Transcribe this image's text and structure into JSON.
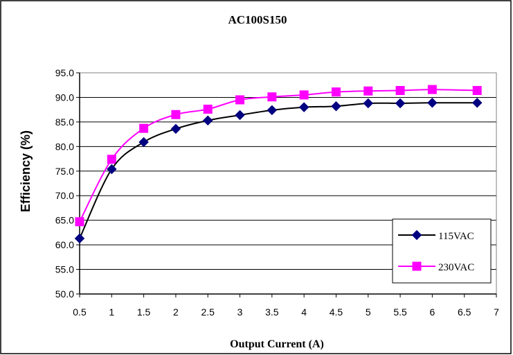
{
  "chart_data": {
    "type": "line",
    "title": "AC100S150",
    "xlabel": "Output Current (A)",
    "ylabel": "Efficiency (%)",
    "xlim": [
      0.5,
      7
    ],
    "ylim": [
      50,
      95
    ],
    "xticks": [
      "0.5",
      "1",
      "1.5",
      "2",
      "2.5",
      "3",
      "3.5",
      "4",
      "4.5",
      "5",
      "5.5",
      "6",
      "6.5",
      "7"
    ],
    "yticks": [
      "50.0",
      "55.0",
      "60.0",
      "65.0",
      "70.0",
      "75.0",
      "80.0",
      "85.0",
      "90.0",
      "95.0"
    ],
    "grid": "horizontal",
    "legend_position": "bottom-right",
    "series": [
      {
        "name": "115VAC",
        "color": "#000000",
        "marker_color": "#000080",
        "marker": "diamond",
        "x": [
          0.5,
          1,
          1.5,
          2,
          2.5,
          3,
          3.5,
          4,
          4.5,
          5,
          5.5,
          6,
          6.7
        ],
        "values": [
          61.3,
          75.4,
          80.9,
          83.6,
          85.3,
          86.4,
          87.4,
          88.0,
          88.2,
          88.8,
          88.8,
          88.9,
          88.9
        ]
      },
      {
        "name": "230VAC",
        "color": "#ff00ff",
        "marker_color": "#ff00ff",
        "marker": "square",
        "x": [
          0.5,
          1,
          1.5,
          2,
          2.5,
          3,
          3.5,
          4,
          4.5,
          5,
          5.5,
          6,
          6.7
        ],
        "values": [
          64.7,
          77.4,
          83.7,
          86.5,
          87.6,
          89.5,
          90.1,
          90.5,
          91.1,
          91.3,
          91.4,
          91.6,
          91.4
        ]
      }
    ]
  }
}
